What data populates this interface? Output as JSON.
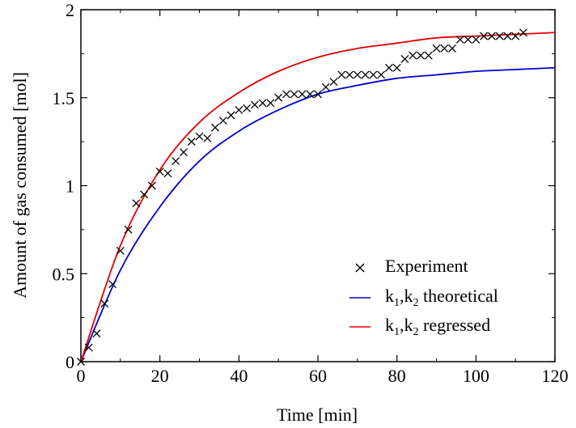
{
  "chart_data": {
    "type": "line",
    "title": "",
    "xlabel": "Time [min]",
    "ylabel": "Amount of gas consumed [mol]",
    "xlim": [
      0,
      120
    ],
    "ylim": [
      0,
      2
    ],
    "grid": false,
    "legend_position": "bottom-right",
    "x_ticks": [
      0,
      20,
      40,
      60,
      80,
      100,
      120
    ],
    "y_ticks": [
      0,
      0.5,
      1,
      1.5,
      2
    ],
    "x_tick_labels": [
      "0",
      "20",
      "40",
      "60",
      "80",
      "100",
      "120"
    ],
    "y_tick_labels": [
      "0",
      "0.5",
      "1",
      "1.5",
      "2"
    ],
    "series": [
      {
        "name": "Experiment",
        "kind": "scatter",
        "marker": "x",
        "color": "#000000",
        "x": [
          0,
          2,
          4,
          6,
          8,
          10,
          12,
          14,
          16,
          18,
          20,
          22,
          24,
          26,
          28,
          30,
          32,
          34,
          36,
          38,
          40,
          42,
          44,
          46,
          48,
          50,
          52,
          54,
          56,
          58,
          60,
          62,
          64,
          66,
          68,
          70,
          72,
          74,
          76,
          78,
          80,
          82,
          84,
          86,
          88,
          90,
          92,
          94,
          96,
          98,
          100,
          102,
          104,
          106,
          108,
          110,
          112
        ],
        "y": [
          0,
          0.08,
          0.16,
          0.33,
          0.44,
          0.63,
          0.75,
          0.9,
          0.95,
          1.0,
          1.08,
          1.07,
          1.14,
          1.19,
          1.25,
          1.28,
          1.27,
          1.33,
          1.37,
          1.4,
          1.43,
          1.44,
          1.46,
          1.47,
          1.47,
          1.5,
          1.52,
          1.52,
          1.52,
          1.52,
          1.52,
          1.56,
          1.59,
          1.63,
          1.63,
          1.63,
          1.63,
          1.63,
          1.63,
          1.67,
          1.67,
          1.72,
          1.74,
          1.74,
          1.74,
          1.78,
          1.78,
          1.78,
          1.83,
          1.83,
          1.83,
          1.85,
          1.85,
          1.85,
          1.85,
          1.85,
          1.87
        ]
      },
      {
        "name": "k₁,k₂ theoretical",
        "legend_base": "k",
        "legend_sub1": "1",
        "legend_mid": ",k",
        "legend_sub2": "2",
        "legend_rest": " theoretical",
        "kind": "line",
        "color": "#0000cc",
        "x": [
          0,
          10,
          20,
          30,
          40,
          50,
          60,
          70,
          80,
          90,
          100,
          110,
          120
        ],
        "y": [
          0,
          0.52,
          0.88,
          1.14,
          1.31,
          1.43,
          1.52,
          1.57,
          1.61,
          1.63,
          1.65,
          1.66,
          1.67
        ]
      },
      {
        "name": "k₁,k₂ regressed",
        "legend_base": "k",
        "legend_sub1": "1",
        "legend_mid": ",k",
        "legend_sub2": "2",
        "legend_rest": " regressed",
        "kind": "line",
        "color": "#e00000",
        "x": [
          0,
          10,
          20,
          30,
          40,
          50,
          60,
          70,
          80,
          90,
          100,
          110,
          120
        ],
        "y": [
          0,
          0.66,
          1.09,
          1.36,
          1.53,
          1.65,
          1.73,
          1.78,
          1.81,
          1.84,
          1.85,
          1.86,
          1.87
        ]
      }
    ]
  }
}
